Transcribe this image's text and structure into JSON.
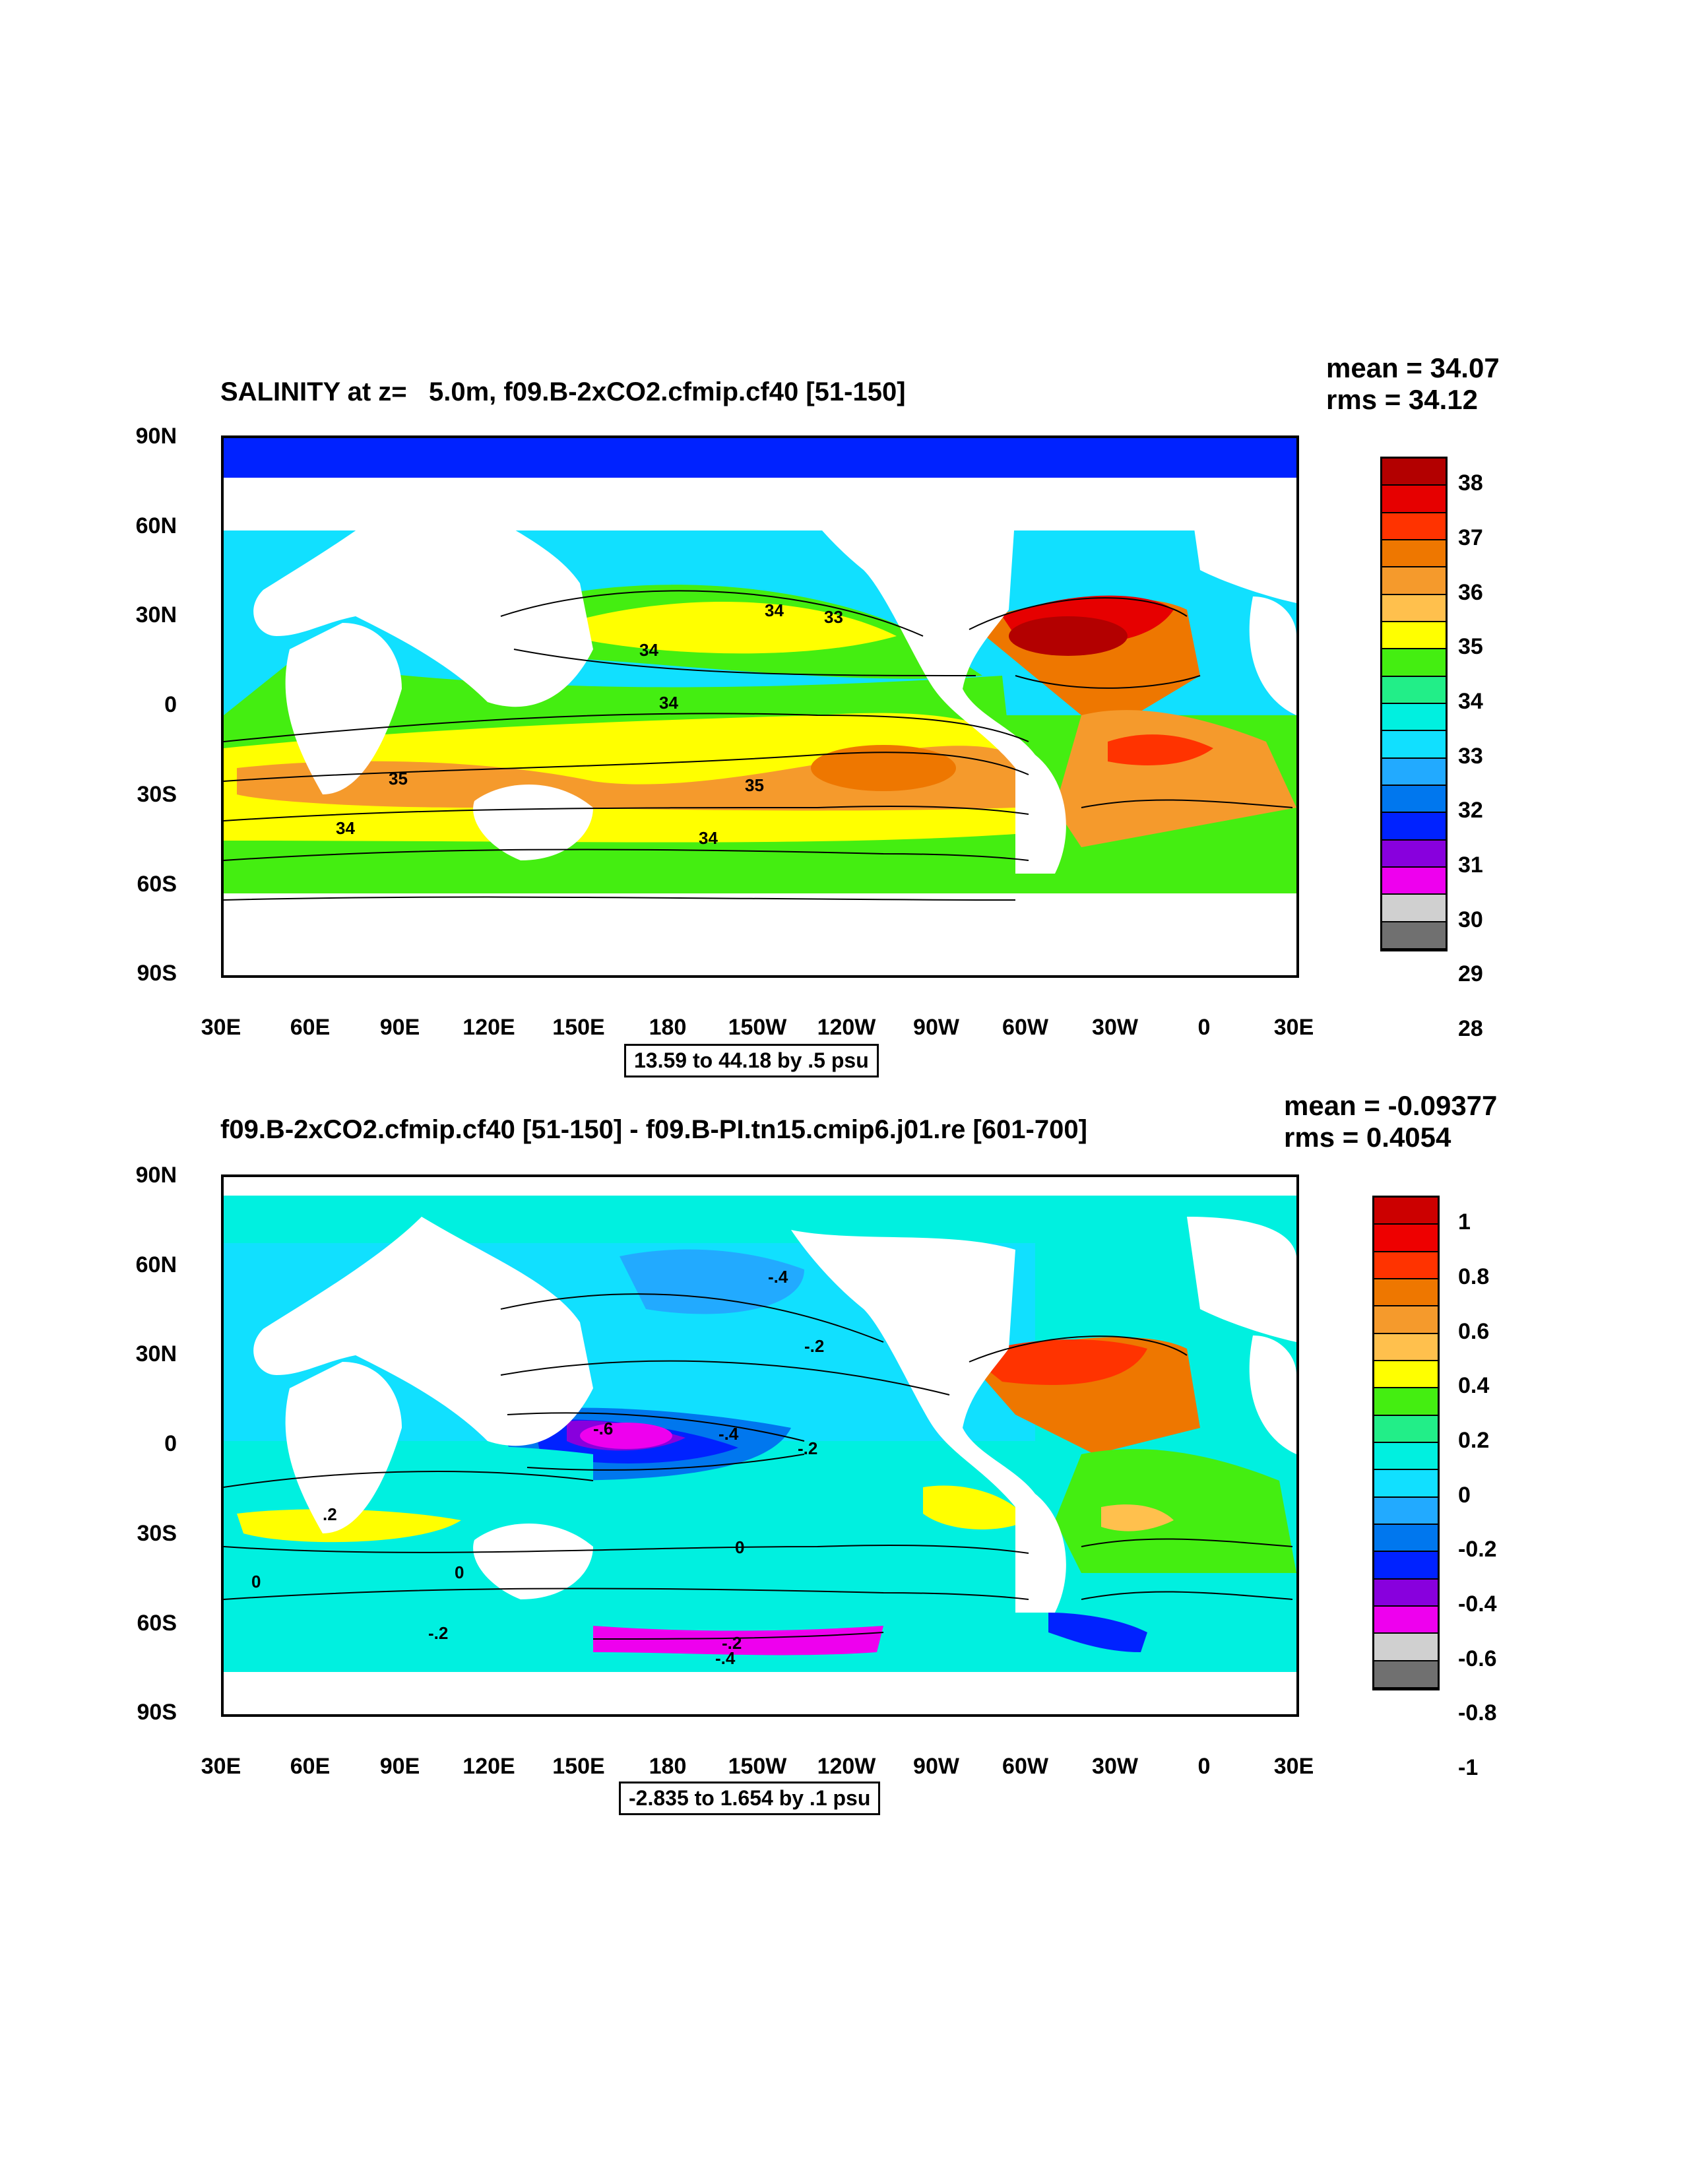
{
  "panel_top": {
    "title": "SALINITY at z=   5.0m, f09.B-2xCO2.cfmip.cf40 [51-150]",
    "mean_text": "mean = 34.07",
    "rms_text": "rms = 34.12",
    "range_text": "13.59 to 44.18 by .5 psu",
    "y_labels": [
      "90N",
      "60N",
      "30N",
      "0",
      "30S",
      "60S",
      "90S"
    ],
    "x_labels": [
      "30E",
      "60E",
      "90E",
      "120E",
      "150E",
      "180",
      "150W",
      "120W",
      "90W",
      "60W",
      "30W",
      "0",
      "30E"
    ],
    "colorbar_labels": [
      "38",
      "37",
      "36",
      "35",
      "34",
      "33",
      "32",
      "31",
      "30",
      "29",
      "28"
    ],
    "colorbar_colors": [
      "#b30000",
      "#e60000",
      "#ff3300",
      "#ee7700",
      "#f59a2c",
      "#ffc04d",
      "#ffff00",
      "#44ee11",
      "#22ee88",
      "#00f0e0",
      "#11e0ff",
      "#22aaff",
      "#0077ee",
      "#0022ff",
      "#8800dd",
      "#ee00ee",
      "#d0d0d0",
      "#707070"
    ],
    "contour_labels": [
      "34",
      "33",
      "34",
      "34",
      "35",
      "35",
      "34",
      "34"
    ]
  },
  "panel_bottom": {
    "title": "f09.B-2xCO2.cfmip.cf40 [51-150] - f09.B-PI.tn15.cmip6.j01.re [601-700]",
    "mean_text": "mean = -0.09377",
    "rms_text": "rms = 0.4054",
    "range_text": "-2.835 to 1.654 by .1 psu",
    "y_labels": [
      "90N",
      "60N",
      "30N",
      "0",
      "30S",
      "60S",
      "90S"
    ],
    "x_labels": [
      "30E",
      "60E",
      "90E",
      "120E",
      "150E",
      "180",
      "150W",
      "120W",
      "90W",
      "60W",
      "30W",
      "0",
      "30E"
    ],
    "colorbar_labels": [
      "1",
      "0.8",
      "0.6",
      "0.4",
      "0.2",
      "0",
      "-0.2",
      "-0.4",
      "-0.6",
      "-0.8",
      "-1"
    ],
    "colorbar_colors": [
      "#cc0000",
      "#ee0000",
      "#ff3300",
      "#ee7700",
      "#f59a2c",
      "#ffc04d",
      "#ffff00",
      "#44ee11",
      "#22ee88",
      "#00f0e0",
      "#11e0ff",
      "#22aaff",
      "#0077ee",
      "#0022ff",
      "#8800dd",
      "#ee00ee",
      "#d0d0d0",
      "#707070"
    ],
    "contour_labels": [
      "-.4",
      "-.2",
      "-.6",
      "-.4",
      "-.2",
      ".2",
      "0",
      "0",
      "0",
      "-.2",
      "-.2",
      "-.4"
    ]
  }
}
